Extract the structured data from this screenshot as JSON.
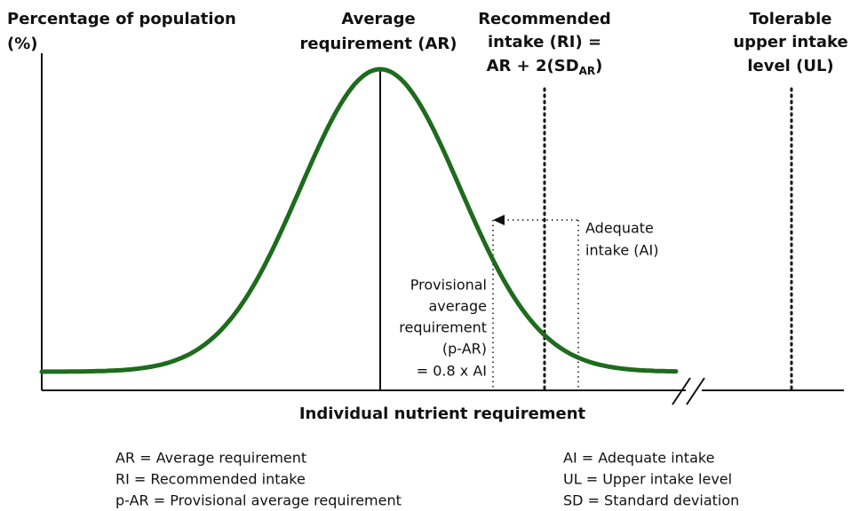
{
  "y_axis_label": [
    "Percentage of population",
    "(%)"
  ],
  "ar_label": [
    "Average",
    "requirement (AR)"
  ],
  "ri_label": {
    "lines": [
      "Recommended",
      "intake (RI) ="
    ],
    "formula": {
      "text": "AR + 2(SD",
      "subscript": "AR",
      "close": ")"
    }
  },
  "ul_label": [
    "Tolerable",
    "upper intake",
    "level (UL)"
  ],
  "ai_label": [
    "Adequate",
    "intake (AI)"
  ],
  "par_label": [
    "Provisional",
    "average",
    "requirement",
    "(p-AR)",
    "= 0.8 x AI"
  ],
  "x_axis_label": "Individual nutrient requirement",
  "legend_left": [
    "AR = Average requirement",
    "RI = Recommended intake",
    "p-AR = Provisional average requirement"
  ],
  "legend_right": [
    "AI = Adequate intake",
    "UL = Upper intake level",
    "SD = Standard deviation"
  ]
}
